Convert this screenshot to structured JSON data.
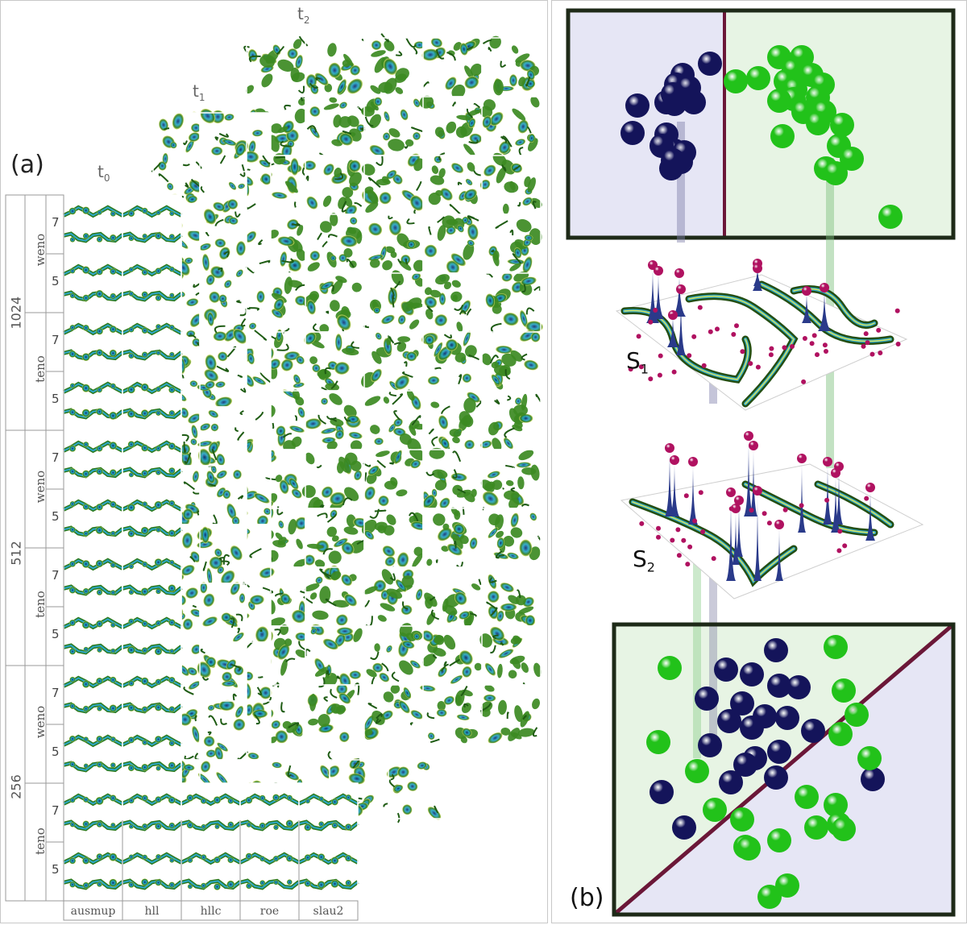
{
  "panel_a": {
    "label": "(a)",
    "time_labels": [
      {
        "base": "t",
        "sub": "0"
      },
      {
        "base": "t",
        "sub": "1"
      },
      {
        "base": "t",
        "sub": "2"
      }
    ],
    "resolutions": [
      "1024",
      "512",
      "256"
    ],
    "schemes": [
      "weno",
      "teno"
    ],
    "orders": [
      "7",
      "5"
    ],
    "solvers": [
      "ausmup",
      "hll",
      "hllc",
      "roe",
      "slau2"
    ]
  },
  "panel_b": {
    "label": "(b)",
    "surfaces": [
      {
        "base": "S",
        "sub": "1"
      },
      {
        "base": "S",
        "sub": "2"
      }
    ],
    "colors": {
      "class_blue": "#14145a",
      "class_green": "#22c21a",
      "divider": "#6b1738",
      "region_blue": "#e6e6f5",
      "region_green": "#e7f4e4",
      "frame": "#1e2a18",
      "peak": "#b01160"
    }
  }
}
